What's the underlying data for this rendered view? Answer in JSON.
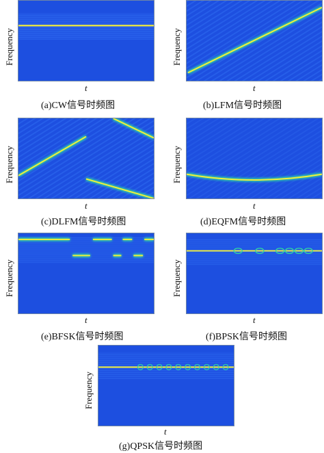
{
  "panels": [
    {
      "id": "cw",
      "y_label": "Frequency",
      "x_label": "t",
      "caption": "(a)CW信号时频图"
    },
    {
      "id": "lfm",
      "y_label": "Frequency",
      "x_label": "t",
      "caption": "(b)LFM信号时频图"
    },
    {
      "id": "dlfm",
      "y_label": "Frequency",
      "x_label": "t",
      "caption": "(c)DLFM信号时频图"
    },
    {
      "id": "eqfm",
      "y_label": "Frequency",
      "x_label": "t",
      "caption": "(d)EQFM信号时频图"
    },
    {
      "id": "bfsk",
      "y_label": "Frequency",
      "x_label": "t",
      "caption": "(e)BFSK信号时频图"
    },
    {
      "id": "bpsk",
      "y_label": "Frequency",
      "x_label": "t",
      "caption": "(f)BPSK信号时频图"
    },
    {
      "id": "qpsk",
      "y_label": "Frequency",
      "x_label": "t",
      "caption": "(g)QPSK信号时频图"
    }
  ],
  "colors": {
    "background": "#1d4fe0",
    "ripple": "#2f6df2",
    "ridge_core": "#f4ee3a",
    "ridge_halo": "#2fd6a2"
  }
}
